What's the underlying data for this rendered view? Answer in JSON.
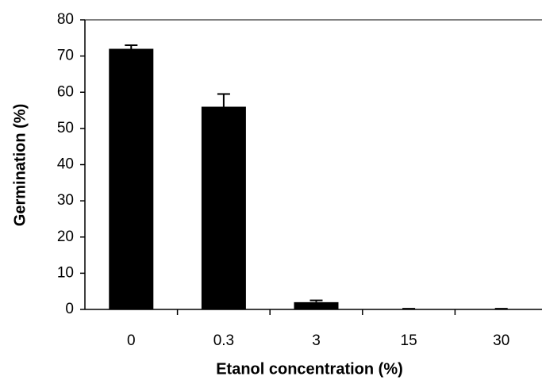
{
  "chart_data": {
    "type": "bar",
    "x_label": "Etanol concentration (%)",
    "y_label": "Germination (%)",
    "categories": [
      "0",
      "0.3",
      "3",
      "15",
      "30"
    ],
    "values": [
      72,
      56,
      2,
      0,
      0
    ],
    "errors": [
      1,
      3.5,
      0.5,
      0.2,
      0.2
    ],
    "color": "#000000",
    "ylim": [
      0,
      80
    ],
    "yticks": [
      0,
      10,
      20,
      30,
      40,
      50,
      60,
      70,
      80
    ]
  }
}
